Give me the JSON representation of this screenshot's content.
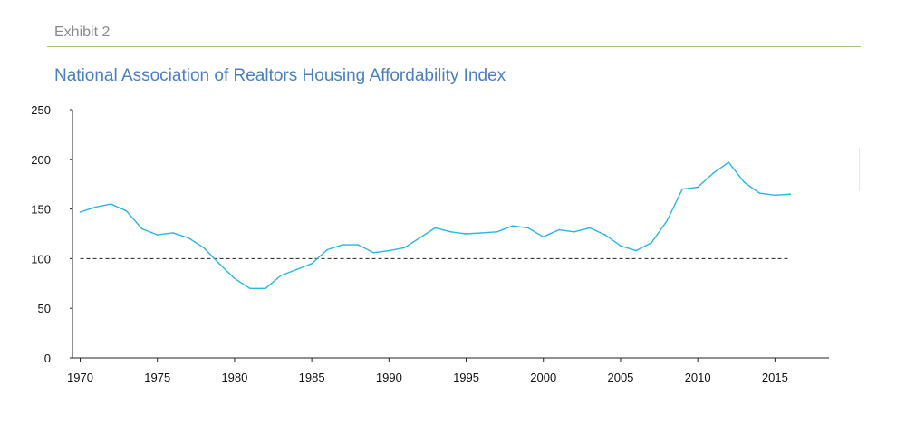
{
  "header": {
    "exhibit_label": "Exhibit 2"
  },
  "chart_data": {
    "type": "line",
    "title": "National Association of Realtors Housing Affordability Index",
    "xlabel": "",
    "ylabel": "",
    "xlim": [
      1969.5,
      2018.5
    ],
    "ylim": [
      0,
      250
    ],
    "x_ticks": [
      1970,
      1975,
      1980,
      1985,
      1990,
      1995,
      2000,
      2005,
      2010,
      2015
    ],
    "y_ticks": [
      0,
      50,
      100,
      150,
      200,
      250
    ],
    "grid": false,
    "reference_line": {
      "value": 100,
      "style": "dashed",
      "color": "#222222"
    },
    "series": [
      {
        "color": "#29b6e6",
        "x": [
          1970,
          1971,
          1972,
          1973,
          1974,
          1975,
          1976,
          1977,
          1978,
          1979,
          1980,
          1981,
          1982,
          1983,
          1984,
          1985,
          1986,
          1987,
          1988,
          1989,
          1990,
          1991,
          1992,
          1993,
          1994,
          1995,
          1996,
          1997,
          1998,
          1999,
          2000,
          2001,
          2002,
          2003,
          2004,
          2005,
          2006,
          2007,
          2008,
          2009,
          2010,
          2011,
          2012,
          2013,
          2014,
          2015,
          2016
        ],
        "values": [
          147,
          152,
          155,
          148,
          130,
          124,
          126,
          121,
          111,
          95,
          80,
          70,
          70,
          83,
          89,
          95,
          109,
          114,
          114,
          106,
          108,
          111,
          121,
          131,
          127,
          125,
          126,
          127,
          133,
          131,
          122,
          129,
          127,
          131,
          124,
          113,
          108,
          116,
          138,
          170,
          172,
          186,
          197,
          177,
          166,
          164,
          165
        ]
      }
    ]
  }
}
